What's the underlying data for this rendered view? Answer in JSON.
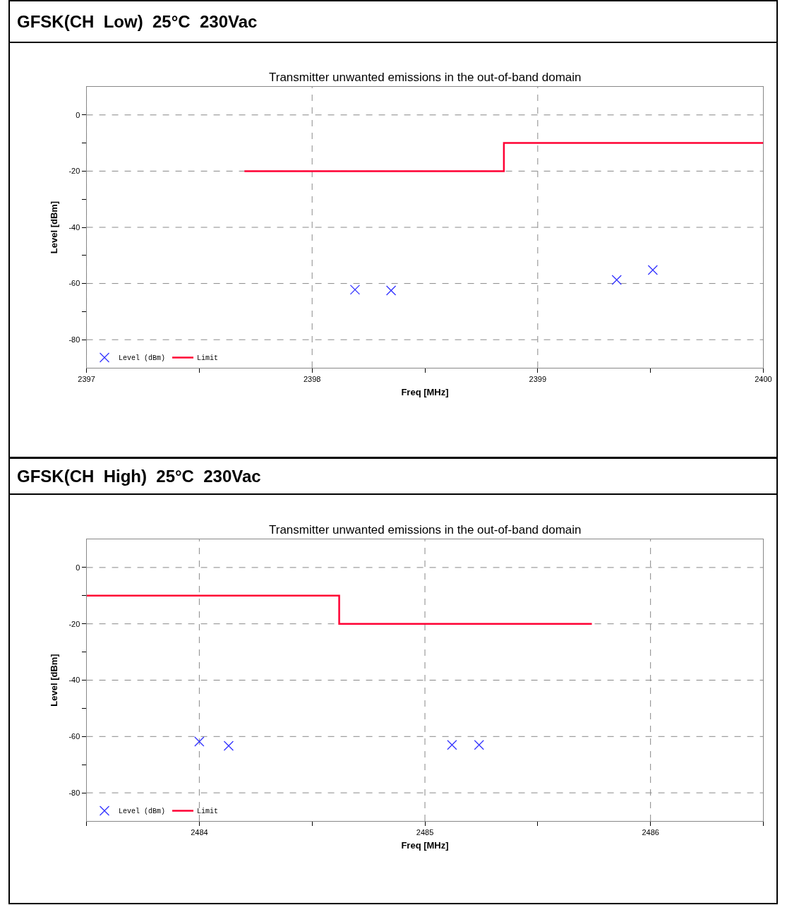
{
  "chart_data": [
    {
      "type": "scatter",
      "title": "GFSK(CH  Low)  25°C  230Vac",
      "subtitle": "Transmitter unwanted emissions in the out-of-band domain",
      "xlabel": "Freq [MHz]",
      "ylabel": "Level [dBm]",
      "xlim": [
        2397,
        2400
      ],
      "xticks": [
        2397,
        {
          "value": 2397.5,
          "label": null
        },
        2398,
        {
          "value": 2398.5,
          "label": null
        },
        2399,
        {
          "value": 2399.5,
          "label": null
        },
        2400
      ],
      "ylim": [
        -90,
        10
      ],
      "yticks": [
        -80,
        {
          "value": -70,
          "label": null
        },
        -60,
        {
          "value": -50,
          "label": null
        },
        -40,
        {
          "value": -30,
          "label": null
        },
        -20,
        {
          "value": -10,
          "label": null
        },
        0
      ],
      "grid": true,
      "legend": "bottom left",
      "series": [
        {
          "name": "Level (dBm)",
          "marker": "cross",
          "color": "#3333ff",
          "x": [
            2398.19,
            2398.35,
            2399.35,
            2399.51
          ],
          "values": [
            -62.2,
            -62.5,
            -58.7,
            -55.2
          ]
        },
        {
          "name": "Limit",
          "type": "step",
          "color": "#ff0033",
          "x": [
            2397.7,
            2398.85,
            2400
          ],
          "values": [
            -20,
            -10,
            -10
          ]
        }
      ]
    },
    {
      "type": "scatter",
      "title": "GFSK(CH  High)  25°C  230Vac",
      "subtitle": "Transmitter unwanted emissions in the out-of-band domain",
      "xlabel": "Freq [MHz]",
      "ylabel": "Level [dBm]",
      "xlim": [
        2483.5,
        2486.5
      ],
      "xticks": [
        {
          "value": 2483.5,
          "label": null
        },
        2484,
        {
          "value": 2484.5,
          "label": null
        },
        2485,
        {
          "value": 2485.5,
          "label": null
        },
        2486,
        {
          "value": 2486.5,
          "label": null
        }
      ],
      "ylim": [
        -90,
        10
      ],
      "yticks": [
        -80,
        {
          "value": -70,
          "label": null
        },
        -60,
        {
          "value": -50,
          "label": null
        },
        -40,
        {
          "value": -30,
          "label": null
        },
        -20,
        {
          "value": -10,
          "label": null
        },
        0
      ],
      "grid": true,
      "legend": "bottom left",
      "series": [
        {
          "name": "Level (dBm)",
          "marker": "cross",
          "color": "#3333ff",
          "x": [
            2484.0,
            2484.13,
            2485.12,
            2485.24
          ],
          "values": [
            -61.8,
            -63.3,
            -63.0,
            -63.0
          ]
        },
        {
          "name": "Limit",
          "type": "step",
          "color": "#ff0033",
          "x": [
            2483.5,
            2484.62,
            2485.74
          ],
          "values": [
            -10,
            -20,
            -20
          ]
        }
      ]
    }
  ]
}
